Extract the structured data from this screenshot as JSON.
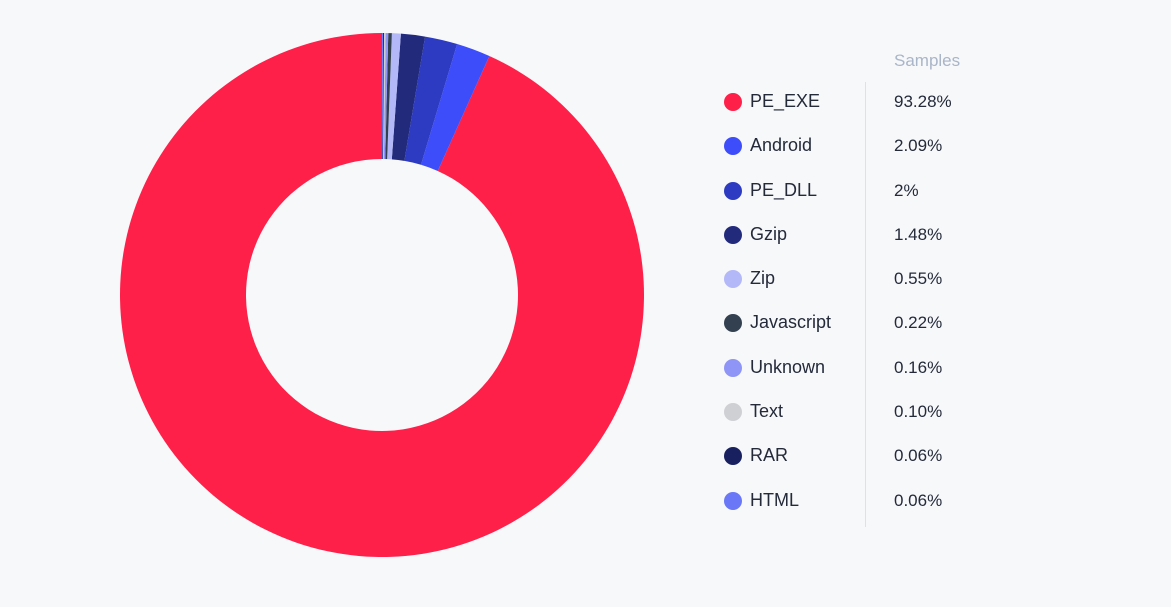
{
  "chart_data": {
    "type": "pie",
    "subtype": "donut",
    "value_header": "Samples",
    "legend_position": "right",
    "categories": [
      "PE_EXE",
      "Android",
      "PE_DLL",
      "Gzip",
      "Zip",
      "Javascript",
      "Unknown",
      "Text",
      "RAR",
      "HTML"
    ],
    "values": [
      93.28,
      2.09,
      2,
      1.48,
      0.55,
      0.22,
      0.16,
      0.1,
      0.06,
      0.06
    ],
    "value_labels": [
      "93.28%",
      "2.09%",
      "2%",
      "1.48%",
      "0.55%",
      "0.22%",
      "0.16%",
      "0.10%",
      "0.06%",
      "0.06%"
    ],
    "colors": [
      "#ff2049",
      "#3d4dfa",
      "#2d3bc2",
      "#222a7c",
      "#b3b8f8",
      "#33404f",
      "#8f95f6",
      "#cfd0d4",
      "#182060",
      "#6a78f8"
    ]
  }
}
